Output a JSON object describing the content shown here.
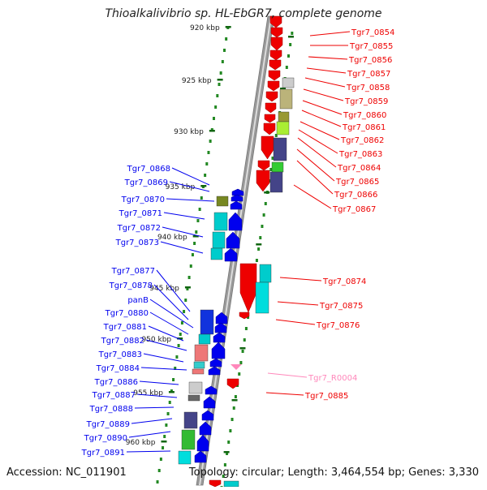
{
  "title": "Thioalkalivibrio sp. HL-EbGR7, complete genome",
  "accession": "Accession: NC_011901",
  "topology": "Topology: circular; Length: 3,464,554 bp; Genes: 3,330",
  "scale_labels": [
    "920 kbp",
    "925 kbp",
    "930 kbp",
    "935 kbp",
    "940 kbp",
    "945 kbp",
    "950 kbp",
    "955 kbp",
    "960 kbp"
  ],
  "left_genes": [
    "Tgr7_0868",
    "Tgr7_0869",
    "Tgr7_0870",
    "Tgr7_0871",
    "Tgr7_0872",
    "Tgr7_0873",
    "Tgr7_0877",
    "Tgr7_0878",
    "panB",
    "Tgr7_0880",
    "Tgr7_0881",
    "Tgr7_0882",
    "Tgr7_0883",
    "Tgr7_0884",
    "Tgr7_0886",
    "Tgr7_0887",
    "Tgr7_0888",
    "Tgr7_0889",
    "Tgr7_0890",
    "Tgr7_0891"
  ],
  "right_genes": [
    "Tgr7_0854",
    "Tgr7_0855",
    "Tgr7_0856",
    "Tgr7_0857",
    "Tgr7_0858",
    "Tgr7_0859",
    "Tgr7_0860",
    "Tgr7_0861",
    "Tgr7_0862",
    "Tgr7_0863",
    "Tgr7_0864",
    "Tgr7_0865",
    "Tgr7_0866",
    "Tgr7_0867",
    "Tgr7_0874",
    "Tgr7_0875",
    "Tgr7_0876",
    "Tgr7_R0004",
    "Tgr7_0885"
  ],
  "colors": {
    "forward_strand": "#0000ee",
    "reverse_strand": "#ee0000",
    "rna": "#ff88bb",
    "backbone": "#999999",
    "scale_dots": "#228822"
  }
}
